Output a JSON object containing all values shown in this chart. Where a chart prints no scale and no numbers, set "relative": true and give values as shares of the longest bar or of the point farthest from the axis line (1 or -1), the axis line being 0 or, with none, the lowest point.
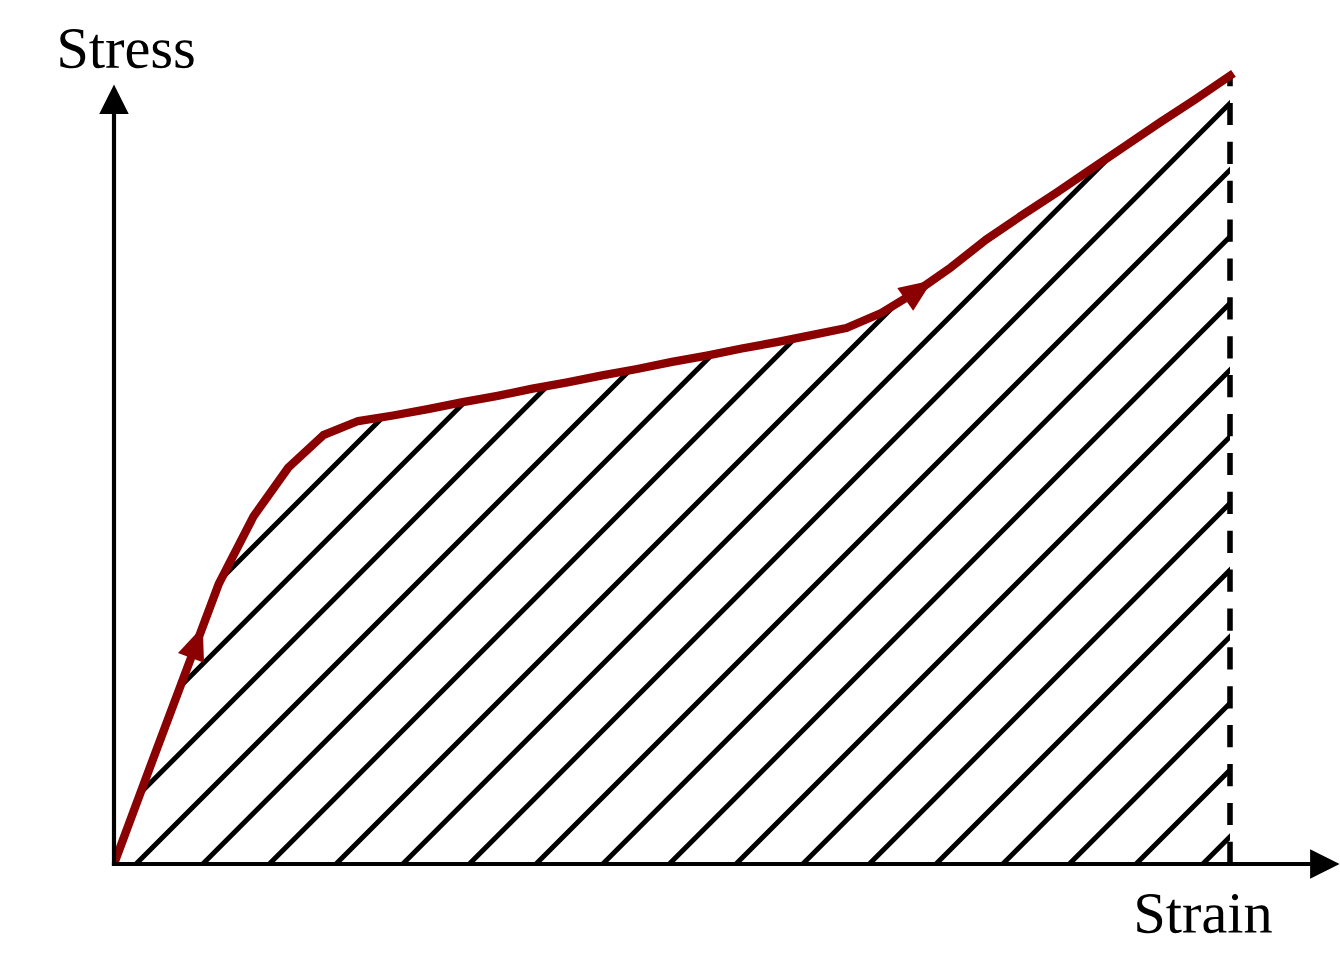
{
  "chart_data": {
    "type": "area",
    "relative": true,
    "xlabel": "Strain",
    "ylabel": "Stress",
    "categories": [
      null,
      null,
      null,
      null,
      null,
      null,
      null,
      null,
      null,
      null,
      null,
      null,
      null,
      null,
      null,
      null,
      null,
      null,
      null,
      null,
      null,
      null,
      null,
      null,
      null,
      null,
      null,
      null,
      null,
      null,
      null,
      null,
      null
    ],
    "series": [
      {
        "color": "#8b0000",
        "values": [
          0,
          0.119,
          0.237,
          0.355,
          0.441,
          0.503,
          0.544,
          0.562,
          0.569,
          0.577,
          0.586,
          0.594,
          0.603,
          0.611,
          0.62,
          0.628,
          0.637,
          0.645,
          0.654,
          0.662,
          0.671,
          0.68,
          0.699,
          0.726,
          0.757,
          0.792,
          0.822,
          0.851,
          0.881,
          0.911,
          0.941,
          0.97,
          1
        ]
      }
    ],
    "marker": "none",
    "line_style": "solid"
  }
}
